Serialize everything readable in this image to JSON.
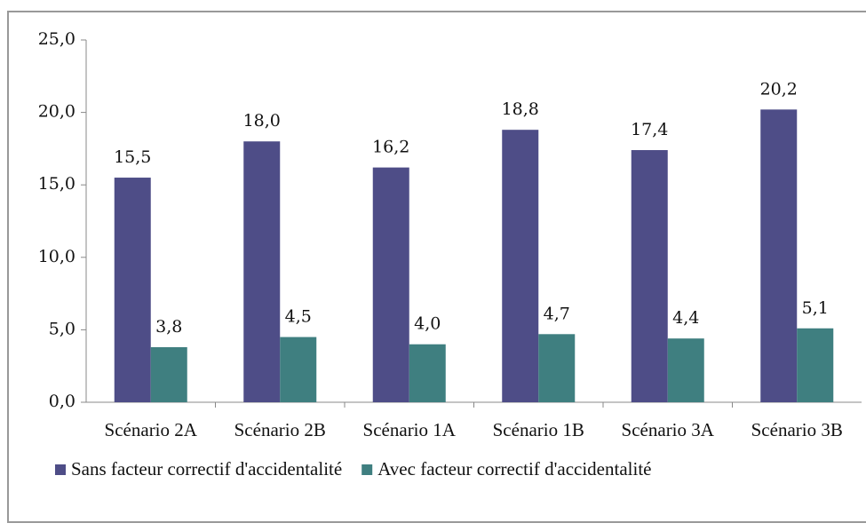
{
  "chart_data": {
    "type": "bar",
    "categories": [
      "Scénario 2A",
      "Scénario 2B",
      "Scénario 1A",
      "Scénario 1B",
      "Scénario 3A",
      "Scénario 3B"
    ],
    "series": [
      {
        "name": "Sans facteur correctif d'accidentalité",
        "color": "#4e4d87",
        "values": [
          15.5,
          18.0,
          16.2,
          18.8,
          17.4,
          20.2
        ],
        "value_labels": [
          "15,5",
          "18,0",
          "16,2",
          "18,8",
          "17,4",
          "20,2"
        ]
      },
      {
        "name": "Avec facteur correctif d'accidentalité",
        "color": "#3f7f80",
        "values": [
          3.8,
          4.5,
          4.0,
          4.7,
          4.4,
          5.1
        ],
        "value_labels": [
          "3,8",
          "4,5",
          "4,0",
          "4,7",
          "4,4",
          "5,1"
        ]
      }
    ],
    "ylim": [
      0,
      25
    ],
    "yticks": [
      {
        "value": 0,
        "label": "0,0"
      },
      {
        "value": 5,
        "label": "5,0"
      },
      {
        "value": 10,
        "label": "10,0"
      },
      {
        "value": 15,
        "label": "15,0"
      },
      {
        "value": 20,
        "label": "20,0"
      },
      {
        "value": 25,
        "label": "25,0"
      }
    ],
    "legend": "bottom"
  }
}
